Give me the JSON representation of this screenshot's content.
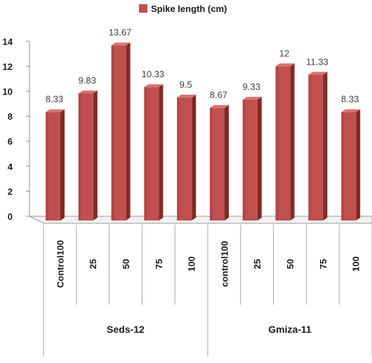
{
  "chart_data": {
    "type": "bar",
    "legend": {
      "label": "Spike length (cm)",
      "position": "top"
    },
    "series": [
      {
        "name": "Spike length (cm)",
        "color": "#C0504D",
        "values": [
          8.33,
          9.83,
          13.67,
          10.33,
          9.5,
          8.67,
          9.33,
          12,
          11.33,
          8.33
        ],
        "labels": [
          "8.33",
          "9.83",
          "13.67",
          "10.33",
          "9.5",
          "8.67",
          "9.33",
          "12",
          "11.33",
          "8.33"
        ]
      }
    ],
    "categories": [
      "Control100",
      "25",
      "50",
      "75",
      "100",
      "control100",
      "25",
      "50",
      "75",
      "100"
    ],
    "groups": [
      {
        "label": "Seds-12",
        "count": 5
      },
      {
        "label": "Gmiza-11",
        "count": 5
      }
    ],
    "ylim": [
      0,
      14
    ],
    "yticks": [
      "0",
      "2",
      "4",
      "6",
      "8",
      "10",
      "12",
      "14"
    ],
    "style": "3d-column",
    "grid": false
  }
}
